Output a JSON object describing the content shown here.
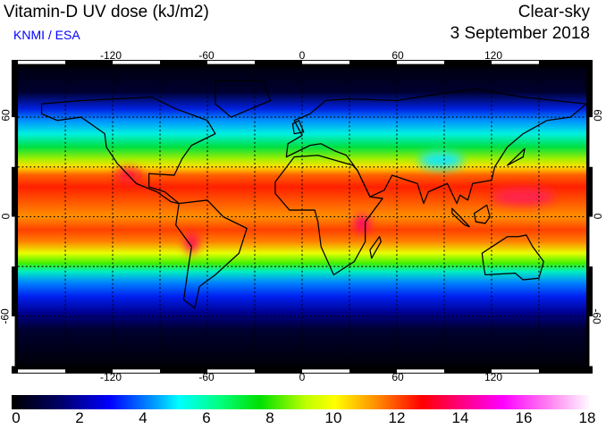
{
  "header": {
    "title": "Vitamin-D UV dose (kJ/m2)",
    "credit": "KNMI / ESA",
    "condition": "Clear-sky",
    "date": "3 September 2018"
  },
  "map": {
    "lon_ticks": [
      "-120",
      "-60",
      "0",
      "60",
      "120"
    ],
    "lat_ticks": [
      "60",
      "0",
      "-60"
    ],
    "lon_range": [
      -180,
      180
    ],
    "lat_range": [
      -90,
      90
    ],
    "grid_spacing_deg": 30
  },
  "colorbar": {
    "labels": [
      "0",
      "2",
      "4",
      "6",
      "8",
      "10",
      "12",
      "14",
      "16",
      "18"
    ],
    "min": 0,
    "max": 18,
    "colors": [
      "#000000",
      "#0000ff",
      "#00ffff",
      "#00e000",
      "#ffff00",
      "#ff0000",
      "#ff00ff",
      "#ffffff"
    ]
  }
}
